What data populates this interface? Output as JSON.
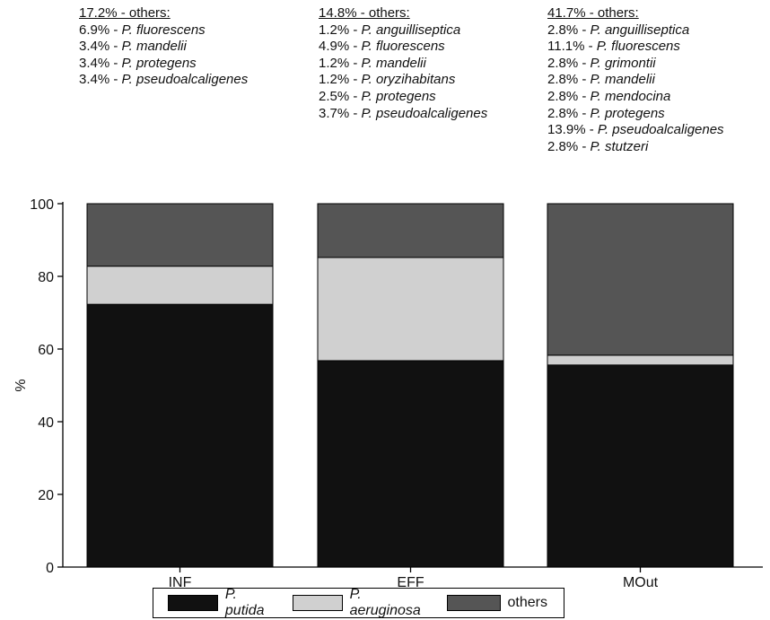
{
  "chart_data": {
    "type": "bar",
    "stacked": true,
    "categories": [
      "INF",
      "EFF",
      "MOut"
    ],
    "series": [
      {
        "name": "P. putida",
        "values": [
          72.3,
          56.8,
          55.6
        ],
        "color": "#111111"
      },
      {
        "name": "P. aeruginosa",
        "values": [
          10.5,
          28.4,
          2.7
        ],
        "color": "#d0d0d0"
      },
      {
        "name": "others",
        "values": [
          17.2,
          14.8,
          41.7
        ],
        "color": "#555555"
      }
    ],
    "ylabel": "%",
    "ylim": [
      0,
      100
    ],
    "yticks": [
      "0",
      "20",
      "40",
      "60",
      "80",
      "100"
    ],
    "grid": false,
    "legend": "bottom"
  },
  "annotations": [
    {
      "header": "17.2% - others:",
      "items": [
        {
          "pct": "6.9%",
          "sep": " - ",
          "species": "P. fluorescens"
        },
        {
          "pct": "3.4%",
          "sep": " - ",
          "species": "P. mandelii"
        },
        {
          "pct": "3.4%",
          "sep": " - ",
          "species": "P. protegens"
        },
        {
          "pct": "3.4%",
          "sep": " - ",
          "species": "P. pseudoalcaligenes"
        }
      ]
    },
    {
      "header": "14.8% - others:",
      "items": [
        {
          "pct": "1.2%",
          "sep": " - ",
          "species": "P. anguilliseptica"
        },
        {
          "pct": "4.9%",
          "sep": " - ",
          "species": "P. fluorescens"
        },
        {
          "pct": "1.2%",
          "sep": " - ",
          "species": "P. mandelii"
        },
        {
          "pct": "1.2%",
          "sep": " - ",
          "species": "P. oryzihabitans"
        },
        {
          "pct": "2.5%",
          "sep": " - ",
          "species": "P. protegens"
        },
        {
          "pct": "3.7%",
          "sep": " - ",
          "species": "P. pseudoalcaligenes"
        }
      ]
    },
    {
      "header": "41.7% - others:",
      "items": [
        {
          "pct": "2.8%",
          "sep": " - ",
          "species": "P. anguilliseptica"
        },
        {
          "pct": "11.1%",
          "sep": " - ",
          "species": "P. fluorescens"
        },
        {
          "pct": "2.8%",
          "sep": " - ",
          "species": "P. grimontii"
        },
        {
          "pct": "2.8%",
          "sep": " - ",
          "species": "P. mandelii"
        },
        {
          "pct": "2.8%",
          "sep": " - ",
          "species": "P. mendocina"
        },
        {
          "pct": "2.8%",
          "sep": " - ",
          "species": "P. protegens"
        },
        {
          "pct": "13.9%",
          "sep": " - ",
          "species": "P. pseudoalcaligenes"
        },
        {
          "pct": "2.8%",
          "sep": " - ",
          "species": "P. stutzeri"
        }
      ]
    }
  ]
}
